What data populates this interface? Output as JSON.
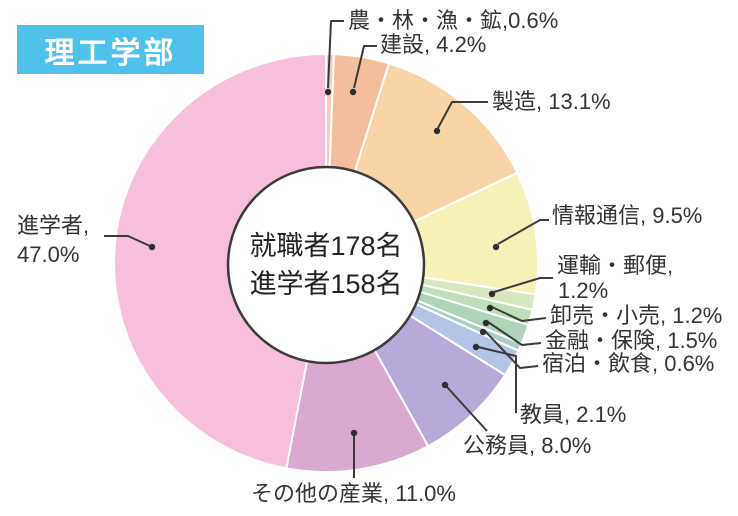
{
  "badge": {
    "label": "理工学部",
    "bg_color": "#4FC1EA",
    "text_color": "#FFFFFF"
  },
  "donut_center": {
    "line1": "就職者178名",
    "line2": "進学者158名"
  },
  "chart_data": {
    "type": "pie",
    "donut": true,
    "title": "理工学部",
    "unit": "%",
    "start_angle_deg": 0,
    "direction": "clockwise",
    "center_labels": [
      "就職者178名",
      "進学者158名"
    ],
    "slices": [
      {
        "label": "農・林・漁・鉱",
        "value": 0.6,
        "color": "#F8CBC6",
        "display": [
          "農・林・漁・鉱,0.6%"
        ]
      },
      {
        "label": "建設",
        "value": 4.2,
        "color": "#F4BE9C",
        "display": [
          "建設, 4.2%"
        ]
      },
      {
        "label": "製造",
        "value": 13.1,
        "color": "#F8D4A7",
        "display": [
          "製造, 13.1%"
        ]
      },
      {
        "label": "情報通信",
        "value": 9.5,
        "color": "#F6F1B7",
        "display": [
          "情報通信, 9.5%"
        ]
      },
      {
        "label": "運輸・郵便",
        "value": 1.2,
        "color": "#D7E6C0",
        "display": [
          "運輸・郵便,",
          "1.2%"
        ]
      },
      {
        "label": "卸売・小売",
        "value": 1.2,
        "color": "#C2DDBA",
        "display": [
          "卸売・小売, 1.2%"
        ]
      },
      {
        "label": "金融・保険",
        "value": 1.5,
        "color": "#AFD4B9",
        "display": [
          "金融・保険, 1.5%"
        ]
      },
      {
        "label": "宿泊・飲食",
        "value": 0.6,
        "color": "#A8CFC6",
        "display": [
          "宿泊・飲食, 0.6%"
        ]
      },
      {
        "label": "教員",
        "value": 2.1,
        "color": "#B4C4E6",
        "display": [
          "教員, 2.1%"
        ]
      },
      {
        "label": "公務員",
        "value": 8.0,
        "color": "#B7AADA",
        "display": [
          "公務員, 8.0%"
        ]
      },
      {
        "label": "その他の産業",
        "value": 11.0,
        "color": "#DAA9CF",
        "display": [
          "その他の産業, 11.0%"
        ]
      },
      {
        "label": "進学者",
        "value": 47.0,
        "color": "#F7BFDB",
        "display": [
          "進学者,",
          "47.0%"
        ]
      }
    ],
    "line_color": "#3A3A3A",
    "hole_border_color": "#3A3A3A"
  }
}
